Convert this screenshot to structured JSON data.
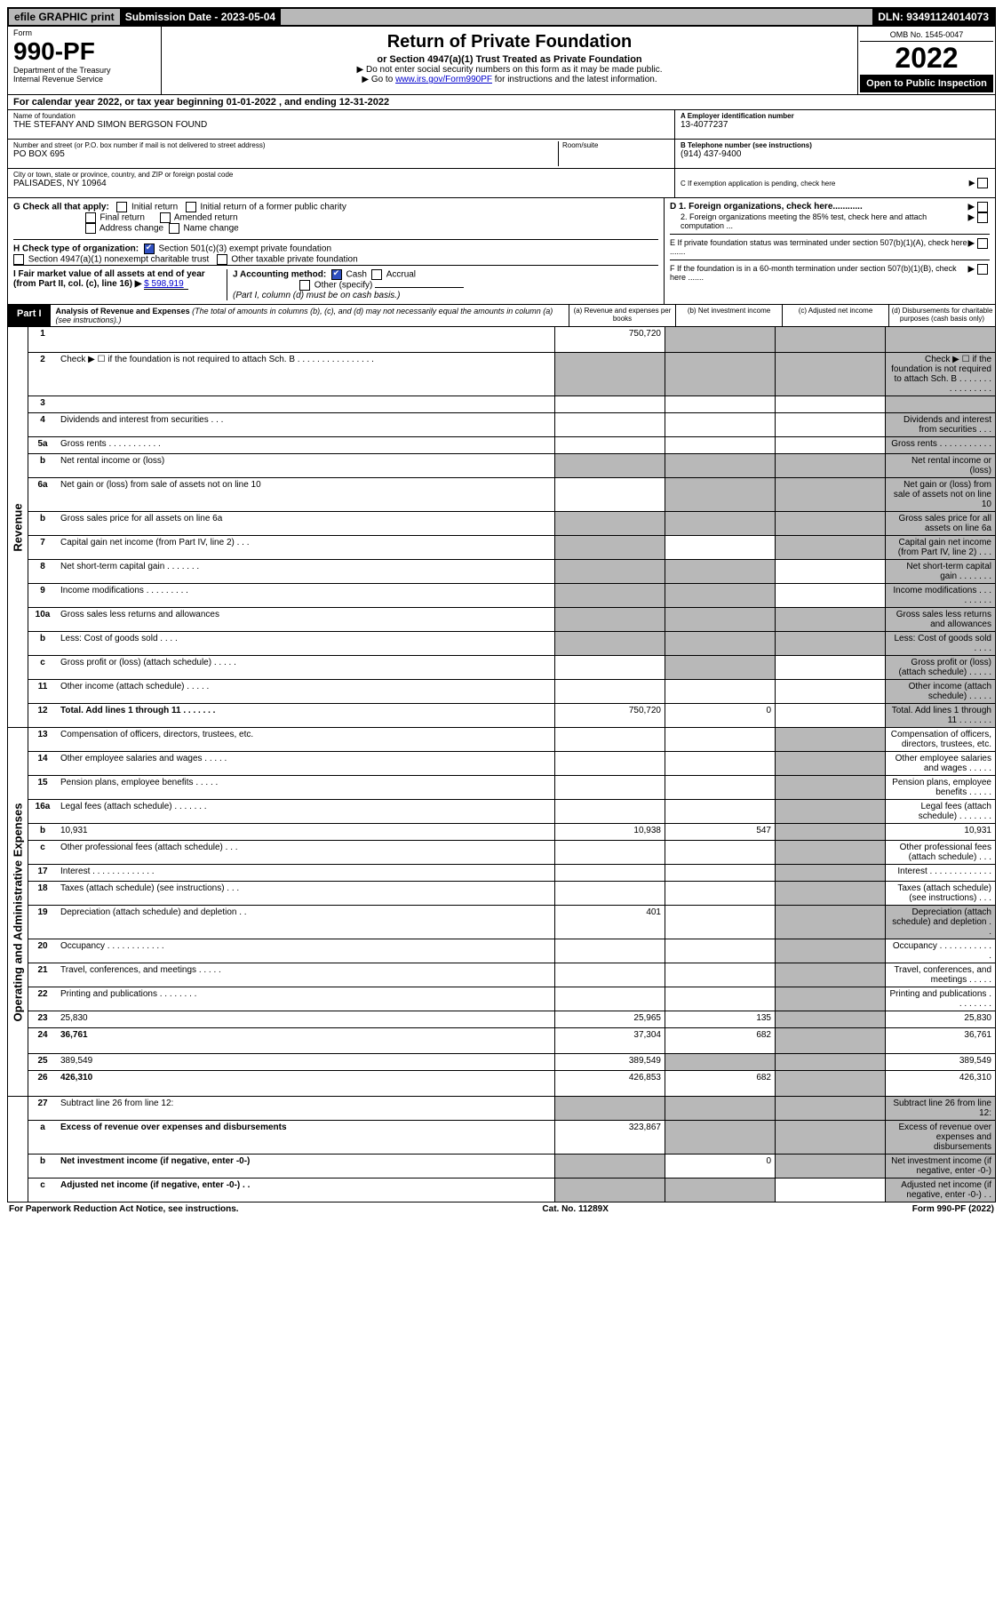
{
  "top": {
    "efile": "efile GRAPHIC print",
    "submission_label": "Submission Date - 2023-05-04",
    "dln": "DLN: 93491124014073"
  },
  "header": {
    "form_label": "Form",
    "form_no": "990-PF",
    "dept": "Department of the Treasury",
    "irs": "Internal Revenue Service",
    "title": "Return of Private Foundation",
    "subtitle": "or Section 4947(a)(1) Trust Treated as Private Foundation",
    "note1": "▶ Do not enter social security numbers on this form as it may be made public.",
    "note2_pre": "▶ Go to ",
    "note2_link": "www.irs.gov/Form990PF",
    "note2_post": " for instructions and the latest information.",
    "omb": "OMB No. 1545-0047",
    "year": "2022",
    "open": "Open to Public Inspection"
  },
  "calyear": "For calendar year 2022, or tax year beginning 01-01-2022           , and ending 12-31-2022",
  "identity": {
    "name_lbl": "Name of foundation",
    "name": "THE STEFANY AND SIMON BERGSON FOUND",
    "addr_lbl": "Number and street (or P.O. box number if mail is not delivered to street address)",
    "addr": "PO BOX 695",
    "room_lbl": "Room/suite",
    "city_lbl": "City or town, state or province, country, and ZIP or foreign postal code",
    "city": "PALISADES, NY  10964",
    "ein_lbl": "A Employer identification number",
    "ein": "13-4077237",
    "tel_lbl": "B Telephone number (see instructions)",
    "tel": "(914) 437-9400",
    "c_lbl": "C If exemption application is pending, check here"
  },
  "ghi": {
    "g_lbl": "G Check all that apply:",
    "initial": "Initial return",
    "initial_former": "Initial return of a former public charity",
    "final": "Final return",
    "amended": "Amended return",
    "addr_chg": "Address change",
    "name_chg": "Name change",
    "h_lbl": "H Check type of organization:",
    "h_501c3": "Section 501(c)(3) exempt private foundation",
    "h_4947": "Section 4947(a)(1) nonexempt charitable trust",
    "h_other": "Other taxable private foundation",
    "i_lbl": "I Fair market value of all assets at end of year (from Part II, col. (c), line 16) ▶",
    "i_val": "$  598,919",
    "j_lbl": "J Accounting method:",
    "j_cash": "Cash",
    "j_accrual": "Accrual",
    "j_other": "Other (specify)",
    "j_note": "(Part I, column (d) must be on cash basis.)",
    "d1": "D 1. Foreign organizations, check here............",
    "d2": "2. Foreign organizations meeting the 85% test, check here and attach computation ...",
    "e": "E  If private foundation status was terminated under section 507(b)(1)(A), check here .......",
    "f": "F  If the foundation is in a 60-month termination under section 507(b)(1)(B), check here ......."
  },
  "part1": {
    "label": "Part I",
    "title": "Analysis of Revenue and Expenses",
    "title_note": " (The total of amounts in columns (b), (c), and (d) may not necessarily equal the amounts in column (a) (see instructions).)",
    "col_a": "(a)  Revenue and expenses per books",
    "col_b": "(b)  Net investment income",
    "col_c": "(c)  Adjusted net income",
    "col_d": "(d)  Disbursements for charitable purposes (cash basis only)"
  },
  "side_rev": "Revenue",
  "side_exp": "Operating and Administrative Expenses",
  "rows_rev": [
    {
      "n": "1",
      "d": "",
      "a": "750,720",
      "b": "",
      "c": "",
      "tall": true,
      "grey_b": true,
      "grey_c": true,
      "grey_d": true
    },
    {
      "n": "2",
      "d": "Check ▶ ☐ if the foundation is not required to attach Sch. B  . . . . . . . . . . . . . . . .",
      "grey_a": true,
      "grey_b": true,
      "grey_c": true,
      "grey_d": true,
      "tall": true
    },
    {
      "n": "3",
      "d": "",
      "a": "",
      "b": "",
      "c": "",
      "grey_d": true
    },
    {
      "n": "4",
      "d": "Dividends and interest from securities  . . .",
      "grey_d": true
    },
    {
      "n": "5a",
      "d": "Gross rents  . . . . . . . . . . .",
      "grey_d": true
    },
    {
      "n": "b",
      "d": "Net rental income or (loss)",
      "grey_a": true,
      "grey_b": true,
      "grey_c": true,
      "grey_d": true
    },
    {
      "n": "6a",
      "d": "Net gain or (loss) from sale of assets not on line 10",
      "grey_b": true,
      "grey_c": true,
      "grey_d": true
    },
    {
      "n": "b",
      "d": "Gross sales price for all assets on line 6a",
      "grey_a": true,
      "grey_b": true,
      "grey_c": true,
      "grey_d": true
    },
    {
      "n": "7",
      "d": "Capital gain net income (from Part IV, line 2)  . . .",
      "grey_a": true,
      "grey_c": true,
      "grey_d": true
    },
    {
      "n": "8",
      "d": "Net short-term capital gain  . . . . . . .",
      "grey_a": true,
      "grey_b": true,
      "grey_d": true
    },
    {
      "n": "9",
      "d": "Income modifications  . . . . . . . . .",
      "grey_a": true,
      "grey_b": true,
      "grey_d": true
    },
    {
      "n": "10a",
      "d": "Gross sales less returns and allowances",
      "grey_a": true,
      "grey_b": true,
      "grey_c": true,
      "grey_d": true
    },
    {
      "n": "b",
      "d": "Less: Cost of goods sold  . . . .",
      "grey_a": true,
      "grey_b": true,
      "grey_c": true,
      "grey_d": true
    },
    {
      "n": "c",
      "d": "Gross profit or (loss) (attach schedule)  . . . . .",
      "grey_b": true,
      "grey_d": true
    },
    {
      "n": "11",
      "d": "Other income (attach schedule)  . . . . .",
      "grey_d": true
    },
    {
      "n": "12",
      "d": "Total. Add lines 1 through 11  . . . . . . .",
      "a": "750,720",
      "b": "0",
      "grey_d": true,
      "bold": true
    }
  ],
  "rows_exp": [
    {
      "n": "13",
      "d": "Compensation of officers, directors, trustees, etc.",
      "grey_c": true
    },
    {
      "n": "14",
      "d": "Other employee salaries and wages  . . . . .",
      "grey_c": true
    },
    {
      "n": "15",
      "d": "Pension plans, employee benefits  . . . . .",
      "grey_c": true
    },
    {
      "n": "16a",
      "d": "Legal fees (attach schedule)  . . . . . . .",
      "grey_c": true
    },
    {
      "n": "b",
      "d": "10,931",
      "a": "10,938",
      "b": "547",
      "grey_c": true
    },
    {
      "n": "c",
      "d": "Other professional fees (attach schedule)  . . .",
      "grey_c": true
    },
    {
      "n": "17",
      "d": "Interest  . . . . . . . . . . . . .",
      "grey_c": true
    },
    {
      "n": "18",
      "d": "Taxes (attach schedule) (see instructions)  . . .",
      "grey_c": true
    },
    {
      "n": "19",
      "d": "Depreciation (attach schedule) and depletion  . .",
      "a": "401",
      "grey_c": true,
      "grey_d": true
    },
    {
      "n": "20",
      "d": "Occupancy  . . . . . . . . . . . .",
      "grey_c": true
    },
    {
      "n": "21",
      "d": "Travel, conferences, and meetings  . . . . .",
      "grey_c": true
    },
    {
      "n": "22",
      "d": "Printing and publications  . . . . . . . .",
      "grey_c": true
    },
    {
      "n": "23",
      "d": "25,830",
      "a": "25,965",
      "b": "135",
      "grey_c": true
    },
    {
      "n": "24",
      "d": "36,761",
      "a": "37,304",
      "b": "682",
      "grey_c": true,
      "bold": true,
      "tall": true
    },
    {
      "n": "25",
      "d": "389,549",
      "a": "389,549",
      "grey_b": true,
      "grey_c": true
    },
    {
      "n": "26",
      "d": "426,310",
      "a": "426,853",
      "b": "682",
      "grey_c": true,
      "bold": true,
      "tall": true
    }
  ],
  "rows_net": [
    {
      "n": "27",
      "d": "Subtract line 26 from line 12:",
      "grey_a": true,
      "grey_b": true,
      "grey_c": true,
      "grey_d": true
    },
    {
      "n": "a",
      "d": "Excess of revenue over expenses and disbursements",
      "a": "323,867",
      "grey_b": true,
      "grey_c": true,
      "grey_d": true,
      "bold": true,
      "tall": true
    },
    {
      "n": "b",
      "d": "Net investment income (if negative, enter -0-)",
      "b": "0",
      "grey_a": true,
      "grey_c": true,
      "grey_d": true,
      "bold": true
    },
    {
      "n": "c",
      "d": "Adjusted net income (if negative, enter -0-)  . .",
      "grey_a": true,
      "grey_b": true,
      "grey_d": true,
      "bold": true
    }
  ],
  "footer": {
    "left": "For Paperwork Reduction Act Notice, see instructions.",
    "center": "Cat. No. 11289X",
    "right": "Form 990-PF (2022)"
  }
}
